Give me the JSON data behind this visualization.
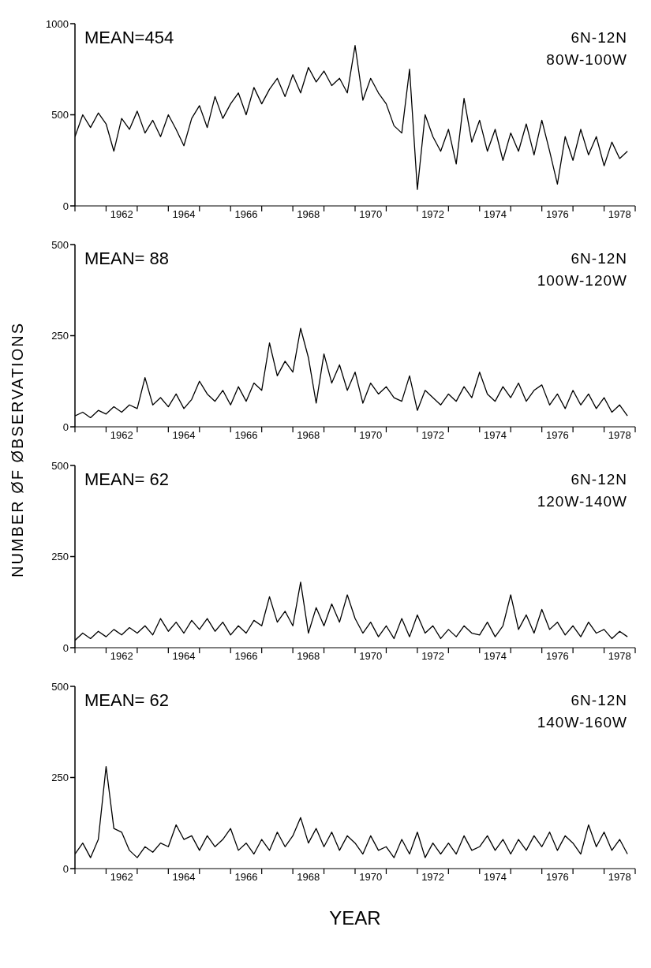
{
  "chart_data": [
    {
      "type": "line",
      "title": "6N-12N",
      "subtitle": "80W-100W",
      "annotations": [
        "MEAN=454"
      ],
      "xlim": [
        1961,
        1979
      ],
      "xticks": [
        {
          "value": 1961,
          "label": null
        },
        {
          "value": 1962,
          "label": null
        },
        {
          "value": 1962.5,
          "label": "1962"
        },
        {
          "value": 1963,
          "label": null
        },
        {
          "value": 1964,
          "label": null
        },
        {
          "value": 1964.5,
          "label": "1964"
        },
        {
          "value": 1965,
          "label": null
        },
        {
          "value": 1966,
          "label": null
        },
        {
          "value": 1966.5,
          "label": "1966"
        },
        {
          "value": 1967,
          "label": null
        },
        {
          "value": 1968,
          "label": null
        },
        {
          "value": 1968.5,
          "label": "1968"
        },
        {
          "value": 1969,
          "label": null
        },
        {
          "value": 1970,
          "label": null
        },
        {
          "value": 1970.5,
          "label": "1970"
        },
        {
          "value": 1971,
          "label": null
        },
        {
          "value": 1972,
          "label": null
        },
        {
          "value": 1972.5,
          "label": "1972"
        },
        {
          "value": 1973,
          "label": null
        },
        {
          "value": 1974,
          "label": null
        },
        {
          "value": 1974.5,
          "label": "1974"
        },
        {
          "value": 1975,
          "label": null
        },
        {
          "value": 1976,
          "label": null
        },
        {
          "value": 1976.5,
          "label": "1976"
        },
        {
          "value": 1977,
          "label": null
        },
        {
          "value": 1978,
          "label": null
        },
        {
          "value": 1978.5,
          "label": "1978"
        },
        {
          "value": 1979,
          "label": null
        }
      ],
      "ylim": [
        0,
        1000
      ],
      "yticks": [
        0,
        500,
        1000
      ],
      "x": [
        1961,
        1961.25,
        1961.5,
        1961.75,
        1962,
        1962.25,
        1962.5,
        1962.75,
        1963,
        1963.25,
        1963.5,
        1963.75,
        1964,
        1964.25,
        1964.5,
        1964.75,
        1965,
        1965.25,
        1965.5,
        1965.75,
        1966,
        1966.25,
        1966.5,
        1966.75,
        1967,
        1967.25,
        1967.5,
        1967.75,
        1968,
        1968.25,
        1968.5,
        1968.75,
        1969,
        1969.25,
        1969.5,
        1969.75,
        1970,
        1970.25,
        1970.5,
        1970.75,
        1971,
        1971.25,
        1971.5,
        1971.75,
        1972,
        1972.25,
        1972.5,
        1972.75,
        1973,
        1973.25,
        1973.5,
        1973.75,
        1974,
        1974.25,
        1974.5,
        1974.75,
        1975,
        1975.25,
        1975.5,
        1975.75,
        1976,
        1976.25,
        1976.5,
        1976.75,
        1977,
        1977.25,
        1977.5,
        1977.75,
        1978,
        1978.25,
        1978.5,
        1978.75
      ],
      "series": [
        {
          "color": "#000000",
          "values": [
            380,
            500,
            430,
            510,
            450,
            300,
            480,
            420,
            520,
            400,
            470,
            380,
            500,
            420,
            330,
            480,
            550,
            430,
            600,
            480,
            560,
            620,
            500,
            650,
            560,
            640,
            700,
            600,
            720,
            620,
            760,
            680,
            740,
            660,
            700,
            620,
            880,
            580,
            700,
            620,
            560,
            440,
            400,
            750,
            90,
            500,
            380,
            300,
            420,
            230,
            590,
            350,
            470,
            300,
            420,
            250,
            400,
            300,
            450,
            280,
            470,
            300,
            120,
            380,
            250,
            420,
            280,
            380,
            220,
            350,
            260,
            300
          ]
        }
      ]
    },
    {
      "type": "line",
      "title": "6N-12N",
      "subtitle": "100W-120W",
      "annotations": [
        "MEAN= 88"
      ],
      "xlim": [
        1961,
        1979
      ],
      "xticks": [
        {
          "value": 1961,
          "label": null
        },
        {
          "value": 1962,
          "label": null
        },
        {
          "value": 1962.5,
          "label": "1962"
        },
        {
          "value": 1963,
          "label": null
        },
        {
          "value": 1964,
          "label": null
        },
        {
          "value": 1964.5,
          "label": "1964"
        },
        {
          "value": 1965,
          "label": null
        },
        {
          "value": 1966,
          "label": null
        },
        {
          "value": 1966.5,
          "label": "1966"
        },
        {
          "value": 1967,
          "label": null
        },
        {
          "value": 1968,
          "label": null
        },
        {
          "value": 1968.5,
          "label": "1968"
        },
        {
          "value": 1969,
          "label": null
        },
        {
          "value": 1970,
          "label": null
        },
        {
          "value": 1970.5,
          "label": "1970"
        },
        {
          "value": 1971,
          "label": null
        },
        {
          "value": 1972,
          "label": null
        },
        {
          "value": 1972.5,
          "label": "1972"
        },
        {
          "value": 1973,
          "label": null
        },
        {
          "value": 1974,
          "label": null
        },
        {
          "value": 1974.5,
          "label": "1974"
        },
        {
          "value": 1975,
          "label": null
        },
        {
          "value": 1976,
          "label": null
        },
        {
          "value": 1976.5,
          "label": "1976"
        },
        {
          "value": 1977,
          "label": null
        },
        {
          "value": 1978,
          "label": null
        },
        {
          "value": 1978.5,
          "label": "1978"
        },
        {
          "value": 1979,
          "label": null
        }
      ],
      "ylim": [
        0,
        500
      ],
      "yticks": [
        0,
        250,
        500
      ],
      "x": [
        1961,
        1961.25,
        1961.5,
        1961.75,
        1962,
        1962.25,
        1962.5,
        1962.75,
        1963,
        1963.25,
        1963.5,
        1963.75,
        1964,
        1964.25,
        1964.5,
        1964.75,
        1965,
        1965.25,
        1965.5,
        1965.75,
        1966,
        1966.25,
        1966.5,
        1966.75,
        1967,
        1967.25,
        1967.5,
        1967.75,
        1968,
        1968.25,
        1968.5,
        1968.75,
        1969,
        1969.25,
        1969.5,
        1969.75,
        1970,
        1970.25,
        1970.5,
        1970.75,
        1971,
        1971.25,
        1971.5,
        1971.75,
        1972,
        1972.25,
        1972.5,
        1972.75,
        1973,
        1973.25,
        1973.5,
        1973.75,
        1974,
        1974.25,
        1974.5,
        1974.75,
        1975,
        1975.25,
        1975.5,
        1975.75,
        1976,
        1976.25,
        1976.5,
        1976.75,
        1977,
        1977.25,
        1977.5,
        1977.75,
        1978,
        1978.25,
        1978.5,
        1978.75
      ],
      "series": [
        {
          "color": "#000000",
          "values": [
            30,
            40,
            25,
            45,
            35,
            55,
            40,
            60,
            50,
            135,
            60,
            80,
            55,
            90,
            50,
            75,
            125,
            90,
            70,
            100,
            60,
            110,
            70,
            120,
            100,
            230,
            140,
            180,
            150,
            270,
            190,
            65,
            200,
            120,
            170,
            100,
            150,
            65,
            120,
            90,
            110,
            80,
            70,
            140,
            45,
            100,
            80,
            60,
            90,
            70,
            110,
            80,
            150,
            90,
            70,
            110,
            80,
            120,
            70,
            100,
            115,
            60,
            90,
            50,
            100,
            60,
            90,
            50,
            80,
            40,
            60,
            30
          ]
        }
      ]
    },
    {
      "type": "line",
      "title": "6N-12N",
      "subtitle": "120W-140W",
      "annotations": [
        "MEAN= 62"
      ],
      "xlim": [
        1961,
        1979
      ],
      "xticks": [
        {
          "value": 1961,
          "label": null
        },
        {
          "value": 1962,
          "label": null
        },
        {
          "value": 1962.5,
          "label": "1962"
        },
        {
          "value": 1963,
          "label": null
        },
        {
          "value": 1964,
          "label": null
        },
        {
          "value": 1964.5,
          "label": "1964"
        },
        {
          "value": 1965,
          "label": null
        },
        {
          "value": 1966,
          "label": null
        },
        {
          "value": 1966.5,
          "label": "1966"
        },
        {
          "value": 1967,
          "label": null
        },
        {
          "value": 1968,
          "label": null
        },
        {
          "value": 1968.5,
          "label": "1968"
        },
        {
          "value": 1969,
          "label": null
        },
        {
          "value": 1970,
          "label": null
        },
        {
          "value": 1970.5,
          "label": "1970"
        },
        {
          "value": 1971,
          "label": null
        },
        {
          "value": 1972,
          "label": null
        },
        {
          "value": 1972.5,
          "label": "1972"
        },
        {
          "value": 1973,
          "label": null
        },
        {
          "value": 1974,
          "label": null
        },
        {
          "value": 1974.5,
          "label": "1974"
        },
        {
          "value": 1975,
          "label": null
        },
        {
          "value": 1976,
          "label": null
        },
        {
          "value": 1976.5,
          "label": "1976"
        },
        {
          "value": 1977,
          "label": null
        },
        {
          "value": 1978,
          "label": null
        },
        {
          "value": 1978.5,
          "label": "1978"
        },
        {
          "value": 1979,
          "label": null
        }
      ],
      "ylim": [
        0,
        500
      ],
      "yticks": [
        0,
        250,
        500
      ],
      "x": [
        1961,
        1961.25,
        1961.5,
        1961.75,
        1962,
        1962.25,
        1962.5,
        1962.75,
        1963,
        1963.25,
        1963.5,
        1963.75,
        1964,
        1964.25,
        1964.5,
        1964.75,
        1965,
        1965.25,
        1965.5,
        1965.75,
        1966,
        1966.25,
        1966.5,
        1966.75,
        1967,
        1967.25,
        1967.5,
        1967.75,
        1968,
        1968.25,
        1968.5,
        1968.75,
        1969,
        1969.25,
        1969.5,
        1969.75,
        1970,
        1970.25,
        1970.5,
        1970.75,
        1971,
        1971.25,
        1971.5,
        1971.75,
        1972,
        1972.25,
        1972.5,
        1972.75,
        1973,
        1973.25,
        1973.5,
        1973.75,
        1974,
        1974.25,
        1974.5,
        1974.75,
        1975,
        1975.25,
        1975.5,
        1975.75,
        1976,
        1976.25,
        1976.5,
        1976.75,
        1977,
        1977.25,
        1977.5,
        1977.75,
        1978,
        1978.25,
        1978.5,
        1978.75
      ],
      "series": [
        {
          "color": "#000000",
          "values": [
            20,
            40,
            25,
            45,
            30,
            50,
            35,
            55,
            40,
            60,
            35,
            80,
            45,
            70,
            40,
            75,
            50,
            80,
            45,
            70,
            35,
            60,
            40,
            75,
            60,
            140,
            70,
            100,
            60,
            180,
            40,
            110,
            60,
            120,
            70,
            145,
            80,
            40,
            70,
            30,
            60,
            25,
            80,
            30,
            90,
            40,
            60,
            25,
            50,
            30,
            60,
            40,
            35,
            70,
            30,
            60,
            145,
            50,
            90,
            40,
            105,
            50,
            70,
            35,
            60,
            30,
            70,
            40,
            50,
            25,
            45,
            30
          ]
        }
      ]
    },
    {
      "type": "line",
      "title": "6N-12N",
      "subtitle": "140W-160W",
      "annotations": [
        "MEAN= 62"
      ],
      "xlabel": "YEAR",
      "ylabel": "NUMBER ØF ØBSERVATIONS",
      "xlim": [
        1961,
        1979
      ],
      "xticks": [
        {
          "value": 1961,
          "label": null
        },
        {
          "value": 1962,
          "label": null
        },
        {
          "value": 1962.5,
          "label": "1962"
        },
        {
          "value": 1963,
          "label": null
        },
        {
          "value": 1964,
          "label": null
        },
        {
          "value": 1964.5,
          "label": "1964"
        },
        {
          "value": 1965,
          "label": null
        },
        {
          "value": 1966,
          "label": null
        },
        {
          "value": 1966.5,
          "label": "1966"
        },
        {
          "value": 1967,
          "label": null
        },
        {
          "value": 1968,
          "label": null
        },
        {
          "value": 1968.5,
          "label": "1968"
        },
        {
          "value": 1969,
          "label": null
        },
        {
          "value": 1970,
          "label": null
        },
        {
          "value": 1970.5,
          "label": "1970"
        },
        {
          "value": 1971,
          "label": null
        },
        {
          "value": 1972,
          "label": null
        },
        {
          "value": 1972.5,
          "label": "1972"
        },
        {
          "value": 1973,
          "label": null
        },
        {
          "value": 1974,
          "label": null
        },
        {
          "value": 1974.5,
          "label": "1974"
        },
        {
          "value": 1975,
          "label": null
        },
        {
          "value": 1976,
          "label": null
        },
        {
          "value": 1976.5,
          "label": "1976"
        },
        {
          "value": 1977,
          "label": null
        },
        {
          "value": 1978,
          "label": null
        },
        {
          "value": 1978.5,
          "label": "1978"
        },
        {
          "value": 1979,
          "label": null
        }
      ],
      "ylim": [
        0,
        500
      ],
      "yticks": [
        0,
        250,
        500
      ],
      "x": [
        1961,
        1961.25,
        1961.5,
        1961.75,
        1962,
        1962.25,
        1962.5,
        1962.75,
        1963,
        1963.25,
        1963.5,
        1963.75,
        1964,
        1964.25,
        1964.5,
        1964.75,
        1965,
        1965.25,
        1965.5,
        1965.75,
        1966,
        1966.25,
        1966.5,
        1966.75,
        1967,
        1967.25,
        1967.5,
        1967.75,
        1968,
        1968.25,
        1968.5,
        1968.75,
        1969,
        1969.25,
        1969.5,
        1969.75,
        1970,
        1970.25,
        1970.5,
        1970.75,
        1971,
        1971.25,
        1971.5,
        1971.75,
        1972,
        1972.25,
        1972.5,
        1972.75,
        1973,
        1973.25,
        1973.5,
        1973.75,
        1974,
        1974.25,
        1974.5,
        1974.75,
        1975,
        1975.25,
        1975.5,
        1975.75,
        1976,
        1976.25,
        1976.5,
        1976.75,
        1977,
        1977.25,
        1977.5,
        1977.75,
        1978,
        1978.25,
        1978.5,
        1978.75
      ],
      "series": [
        {
          "color": "#000000",
          "values": [
            40,
            70,
            30,
            80,
            280,
            110,
            100,
            50,
            30,
            60,
            45,
            70,
            60,
            120,
            80,
            90,
            50,
            90,
            60,
            80,
            110,
            50,
            70,
            40,
            80,
            50,
            100,
            60,
            90,
            140,
            70,
            110,
            60,
            100,
            50,
            90,
            70,
            40,
            90,
            50,
            60,
            30,
            80,
            40,
            100,
            30,
            70,
            40,
            70,
            40,
            90,
            50,
            60,
            90,
            50,
            80,
            40,
            80,
            50,
            90,
            60,
            100,
            50,
            90,
            70,
            40,
            120,
            60,
            100,
            50,
            80,
            40
          ]
        }
      ]
    }
  ]
}
